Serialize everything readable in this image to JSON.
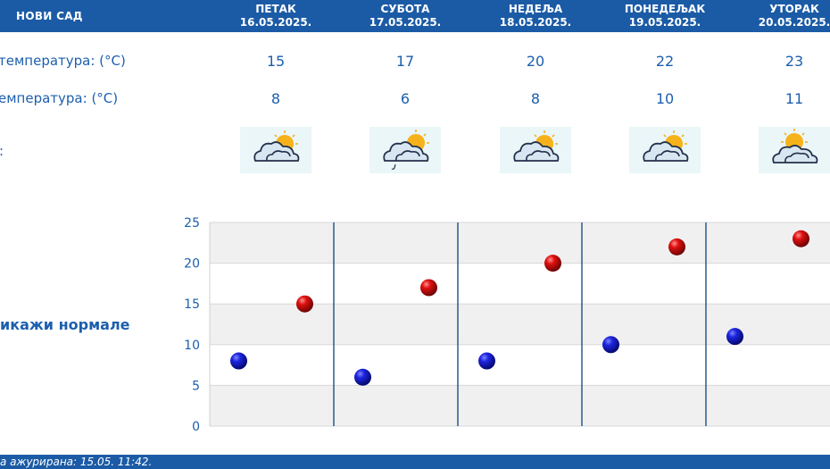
{
  "header": {
    "city": "НОВИ САД",
    "days": [
      {
        "name": "ПЕТАК",
        "date": "16.05.2025."
      },
      {
        "name": "СУБОТА",
        "date": "17.05.2025."
      },
      {
        "name": "НЕДЕЉА",
        "date": "18.05.2025."
      },
      {
        "name": "ПОНЕДЕЉАК",
        "date": "19.05.2025."
      },
      {
        "name": "УТОРАК",
        "date": "20.05.2025."
      }
    ]
  },
  "rows": {
    "max_label": "температура: (°C)",
    "min_label": "емпература: (°C)",
    "weather_label": ":",
    "max_values": [
      "15",
      "17",
      "20",
      "22",
      "23"
    ],
    "min_values": [
      "8",
      "6",
      "8",
      "10",
      "11"
    ],
    "weather_icons": [
      "partly-cloudy-icon",
      "partly-cloudy-rain-icon",
      "partly-cloudy-icon",
      "partly-cloudy-icon",
      "partly-cloudy-icon"
    ]
  },
  "normals_link": "икажи нормале",
  "chart_data": {
    "type": "scatter",
    "categories": [
      "16.05.2025.",
      "17.05.2025.",
      "18.05.2025.",
      "19.05.2025.",
      "20.05.2025."
    ],
    "series": [
      {
        "values": [
          8,
          6,
          8,
          10,
          11
        ],
        "color": "#0a12c8"
      },
      {
        "values": [
          15,
          17,
          20,
          22,
          23
        ],
        "color": "#d00a0a"
      }
    ],
    "ylim": [
      0,
      25
    ],
    "yticks": [
      "0",
      "5",
      "10",
      "15",
      "20",
      "25"
    ],
    "grid": true
  },
  "footer": {
    "text": "а ажурирана:  15.05.  11:42."
  },
  "colors": {
    "header_bg": "#1b5ba6",
    "text": "#1c5fae",
    "band": "#f0f0f0",
    "divider": "#1f4e86",
    "icon_bg": "#eaf6f8"
  }
}
